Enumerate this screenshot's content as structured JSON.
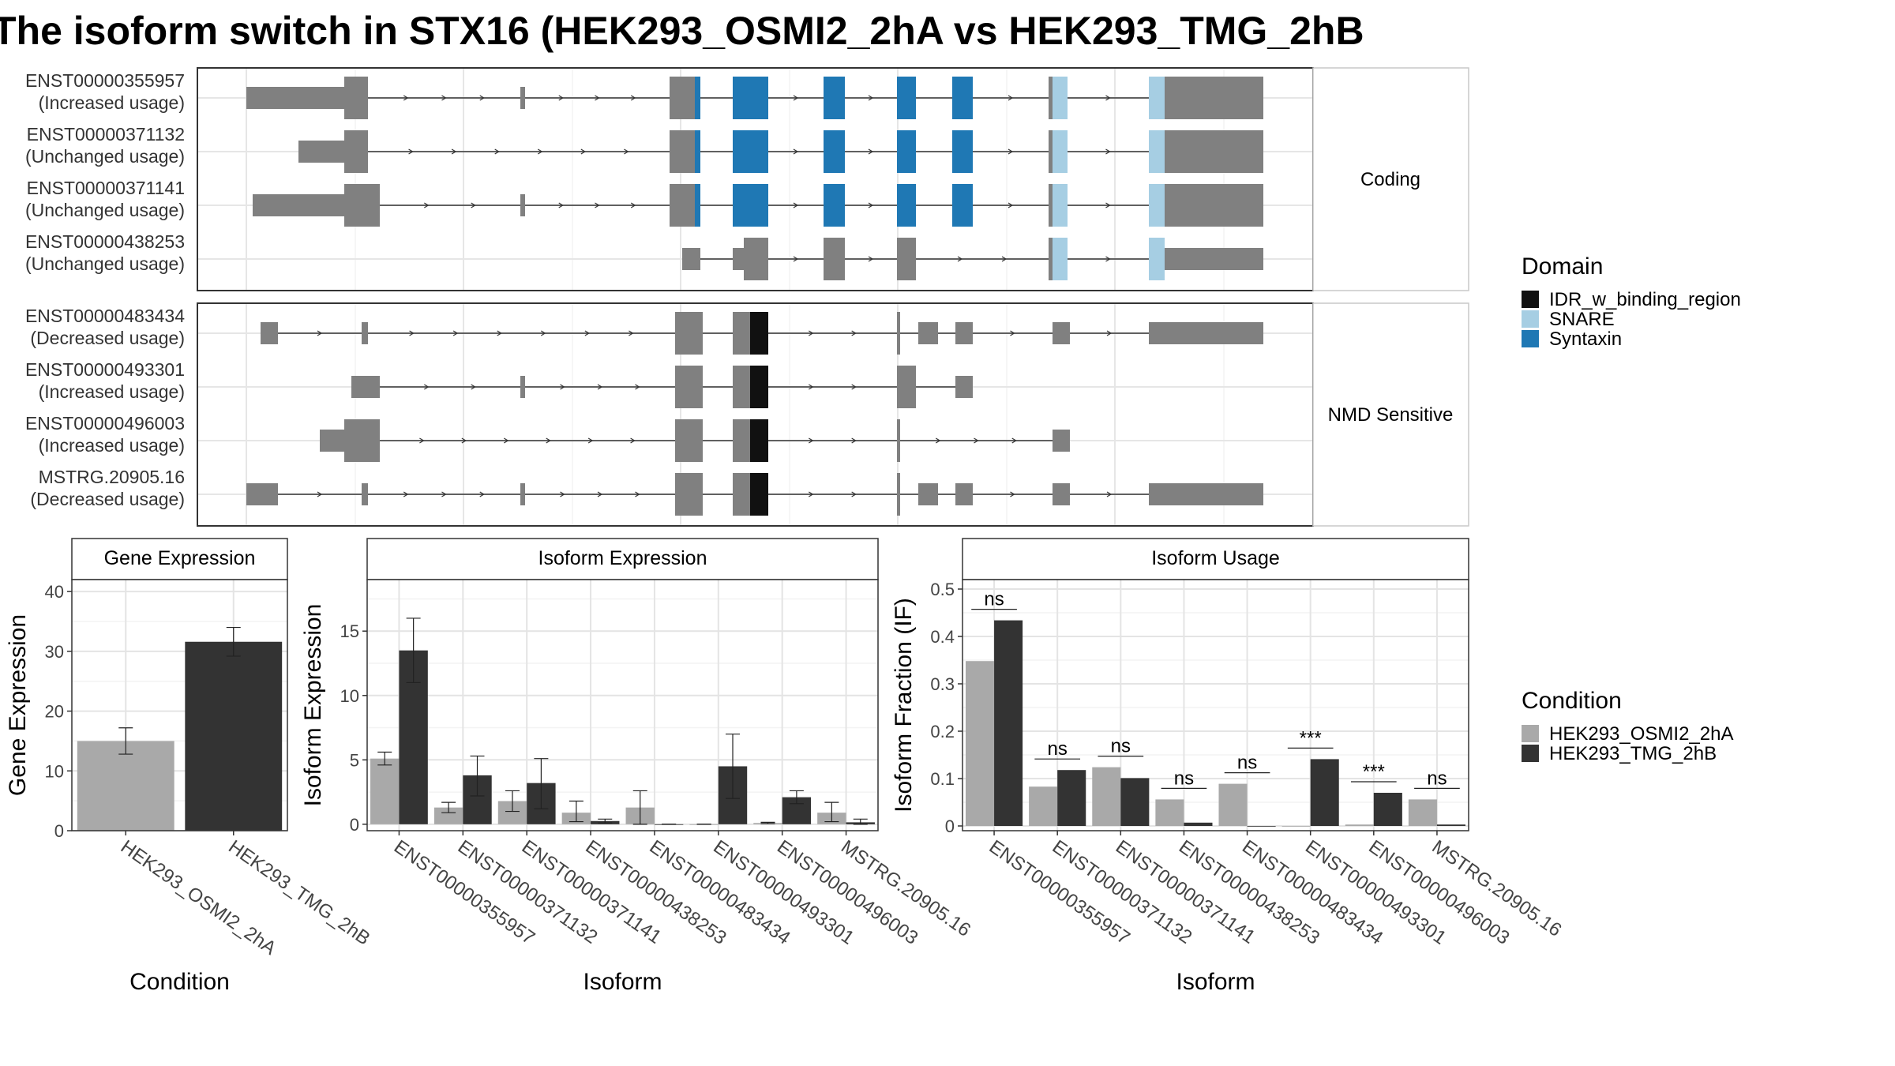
{
  "title": "The isoform switch in STX16 (HEK293_OSMI2_2hA vs HEK293_TMG_2hB",
  "colors": {
    "exon": "#808080",
    "SNARE": "#a6cee3",
    "Syntaxin": "#1f78b4",
    "IDR_w_binding_region": "#111111",
    "cond1": "#a9a9a9",
    "cond2": "#333333"
  },
  "structure": {
    "groups": [
      {
        "label": "Coding",
        "transcripts": [
          {
            "id": "ENST00000355957",
            "usage": "(Increased usage)"
          },
          {
            "id": "ENST00000371132",
            "usage": "(Unchanged usage)"
          },
          {
            "id": "ENST00000371141",
            "usage": "(Unchanged usage)"
          },
          {
            "id": "ENST00000438253",
            "usage": "(Unchanged usage)"
          }
        ]
      },
      {
        "label": "NMD Sensitive",
        "transcripts": [
          {
            "id": "ENST00000483434",
            "usage": "(Decreased usage)"
          },
          {
            "id": "ENST00000493301",
            "usage": "(Increased usage)"
          },
          {
            "id": "ENST00000496003",
            "usage": "(Increased usage)"
          },
          {
            "id": "MSTRG.20905.16",
            "usage": "(Decreased usage)"
          }
        ]
      }
    ]
  },
  "legend_domain": {
    "title": "Domain",
    "items": [
      "IDR_w_binding_region",
      "SNARE",
      "Syntaxin"
    ]
  },
  "legend_condition": {
    "title": "Condition",
    "items": [
      "HEK293_OSMI2_2hA",
      "HEK293_TMG_2hB"
    ]
  },
  "chart_data": [
    {
      "type": "bar",
      "title": "Gene Expression",
      "xlabel": "Condition",
      "ylabel": "Gene Expression",
      "ylim": [
        0,
        42
      ],
      "yticks": [
        0,
        10,
        20,
        30,
        40
      ],
      "categories": [
        "HEK293_OSMI2_2hA",
        "HEK293_TMG_2hB"
      ],
      "values": [
        15.0,
        31.6
      ],
      "errors": [
        [
          12.8,
          17.2
        ],
        [
          29.2,
          34.0
        ]
      ]
    },
    {
      "type": "bar",
      "title": "Isoform Expression",
      "xlabel": "Isoform",
      "ylabel": "Isoform Expression",
      "ylim": [
        -0.5,
        19
      ],
      "yticks": [
        0,
        5,
        10,
        15
      ],
      "categories": [
        "ENST00000355957",
        "ENST00000371132",
        "ENST00000371141",
        "ENST00000438253",
        "ENST00000483434",
        "ENST00000493301",
        "ENST00000496003",
        "MSTRG.20905.16"
      ],
      "series": [
        {
          "name": "HEK293_OSMI2_2hA",
          "values": [
            5.1,
            1.3,
            1.8,
            0.9,
            1.3,
            0.0,
            0.1,
            0.9
          ],
          "errors": [
            [
              4.6,
              5.6
            ],
            [
              0.9,
              1.7
            ],
            [
              1.0,
              2.6
            ],
            [
              0.2,
              1.8
            ],
            [
              0.0,
              2.6
            ],
            [
              0.0,
              0.0
            ],
            [
              0.05,
              0.15
            ],
            [
              0.2,
              1.7
            ]
          ]
        },
        {
          "name": "HEK293_TMG_2hB",
          "values": [
            13.5,
            3.8,
            3.2,
            0.25,
            0.0,
            4.5,
            2.1,
            0.15
          ],
          "errors": [
            [
              11.0,
              16.0
            ],
            [
              2.2,
              5.3
            ],
            [
              1.2,
              5.1
            ],
            [
              0.1,
              0.4
            ],
            [
              0.0,
              0.0
            ],
            [
              2.0,
              7.0
            ],
            [
              1.6,
              2.6
            ],
            [
              0.0,
              0.4
            ]
          ]
        }
      ]
    },
    {
      "type": "bar",
      "title": "Isoform Usage",
      "xlabel": "Isoform",
      "ylabel": "Isoform Fraction (IF)",
      "ylim": [
        -0.01,
        0.52
      ],
      "yticks": [
        0.0,
        0.1,
        0.2,
        0.3,
        0.4,
        0.5
      ],
      "categories": [
        "ENST00000355957",
        "ENST00000371132",
        "ENST00000371141",
        "ENST00000438253",
        "ENST00000483434",
        "ENST00000493301",
        "ENST00000496003",
        "MSTRG.20905.16"
      ],
      "series": [
        {
          "name": "HEK293_OSMI2_2hA",
          "values": [
            0.348,
            0.083,
            0.124,
            0.056,
            0.089,
            0.0,
            0.003,
            0.056
          ]
        },
        {
          "name": "HEK293_TMG_2hB",
          "values": [
            0.434,
            0.118,
            0.101,
            0.007,
            0.0,
            0.141,
            0.07,
            0.003
          ]
        }
      ],
      "significance": [
        "ns",
        "ns",
        "ns",
        "ns",
        "ns",
        "***",
        "***",
        "ns"
      ]
    }
  ]
}
